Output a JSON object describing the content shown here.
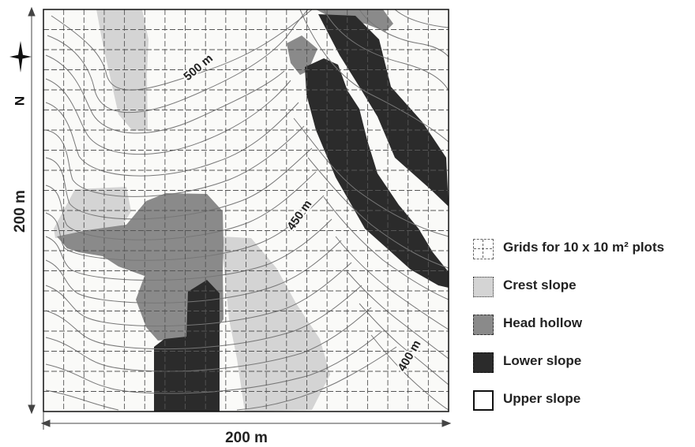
{
  "map": {
    "north_label": "N",
    "width_label": "200 m",
    "height_label": "200 m",
    "contour_labels": [
      "500 m",
      "450 m",
      "400 m"
    ]
  },
  "legend": {
    "items": [
      {
        "id": "grid",
        "label": "Grids for 10 x 10 m² plots"
      },
      {
        "id": "crest",
        "label": "Crest slope",
        "color": "#d4d4d4"
      },
      {
        "id": "head",
        "label": "Head hollow",
        "color": "#8a8a8a"
      },
      {
        "id": "lower",
        "label": "Lower slope",
        "color": "#2b2b2b"
      },
      {
        "id": "upper",
        "label": "Upper slope",
        "color": "#ffffff"
      }
    ]
  }
}
